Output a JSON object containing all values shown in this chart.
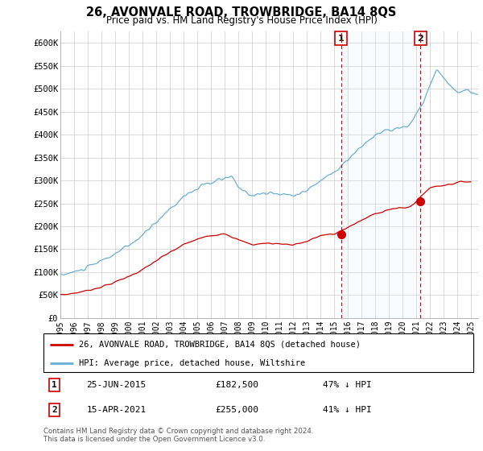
{
  "title": "26, AVONVALE ROAD, TROWBRIDGE, BA14 8QS",
  "subtitle": "Price paid vs. HM Land Registry's House Price Index (HPI)",
  "ylabel_ticks": [
    "£0",
    "£50K",
    "£100K",
    "£150K",
    "£200K",
    "£250K",
    "£300K",
    "£350K",
    "£400K",
    "£450K",
    "£500K",
    "£550K",
    "£600K"
  ],
  "ytick_values": [
    0,
    50000,
    100000,
    150000,
    200000,
    250000,
    300000,
    350000,
    400000,
    450000,
    500000,
    550000,
    600000
  ],
  "ylim": [
    0,
    625000
  ],
  "xlim_start": 1995.0,
  "xlim_end": 2025.5,
  "hpi_color": "#6aaed6",
  "hpi_fill_color": "#ddeeff",
  "price_color": "#cc0000",
  "dashed_color": "#cc0000",
  "marker1_date": 2015.49,
  "marker1_price": 182500,
  "marker2_date": 2021.29,
  "marker2_price": 255000,
  "marker1_label": "25-JUN-2015",
  "marker1_amount": "£182,500",
  "marker1_pct": "47% ↓ HPI",
  "marker2_label": "15-APR-2021",
  "marker2_amount": "£255,000",
  "marker2_pct": "41% ↓ HPI",
  "legend_line1": "26, AVONVALE ROAD, TROWBRIDGE, BA14 8QS (detached house)",
  "legend_line2": "HPI: Average price, detached house, Wiltshire",
  "footnote": "Contains HM Land Registry data © Crown copyright and database right 2024.\nThis data is licensed under the Open Government Licence v3.0.",
  "xtick_years": [
    1995,
    1996,
    1997,
    1998,
    1999,
    2000,
    2001,
    2002,
    2003,
    2004,
    2005,
    2006,
    2007,
    2008,
    2009,
    2010,
    2011,
    2012,
    2013,
    2014,
    2015,
    2016,
    2017,
    2018,
    2019,
    2020,
    2021,
    2022,
    2023,
    2024,
    2025
  ],
  "xtick_labels": [
    "1995",
    "1996",
    "1997",
    "1998",
    "1999",
    "2000",
    "2001",
    "2002",
    "2003",
    "2004",
    "2005",
    "2006",
    "2007",
    "2008",
    "2009",
    "2010",
    "2011",
    "2012",
    "2013",
    "2014",
    "2015",
    "2016",
    "2017",
    "2018",
    "2019",
    "2020",
    "2021",
    "2022",
    "2023",
    "2024",
    "2025"
  ]
}
